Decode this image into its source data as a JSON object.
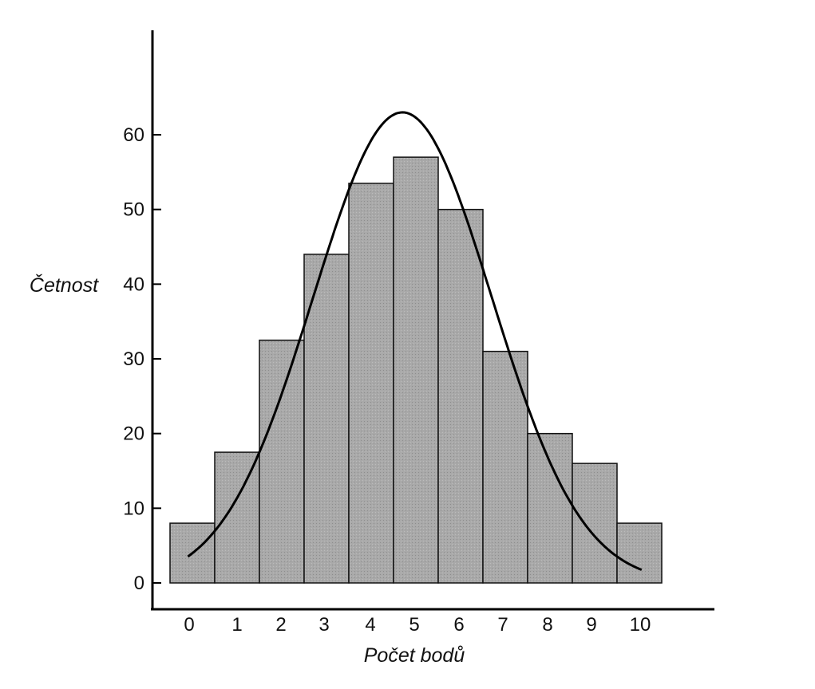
{
  "chart_data": {
    "type": "bar",
    "categories": [
      "0",
      "1",
      "2",
      "3",
      "4",
      "5",
      "6",
      "7",
      "8",
      "9",
      "10"
    ],
    "series": [
      {
        "values": [
          8,
          17.5,
          32.5,
          44,
          53.5,
          57,
          50,
          31,
          20,
          16,
          8
        ]
      }
    ],
    "overlay_curve": {
      "type": "normal",
      "mean": 4.7,
      "sd": 2.0,
      "peak": 63
    },
    "xlabel": "Počet bodů",
    "ylabel": "Četnost",
    "ylim": [
      0,
      60
    ],
    "yticks": [
      0,
      10,
      20,
      30,
      40,
      50,
      60
    ],
    "grid": false,
    "colors": {
      "bar_fill": "#a8a8a8",
      "bar_stroke": "#111111",
      "curve": "#000000"
    }
  }
}
